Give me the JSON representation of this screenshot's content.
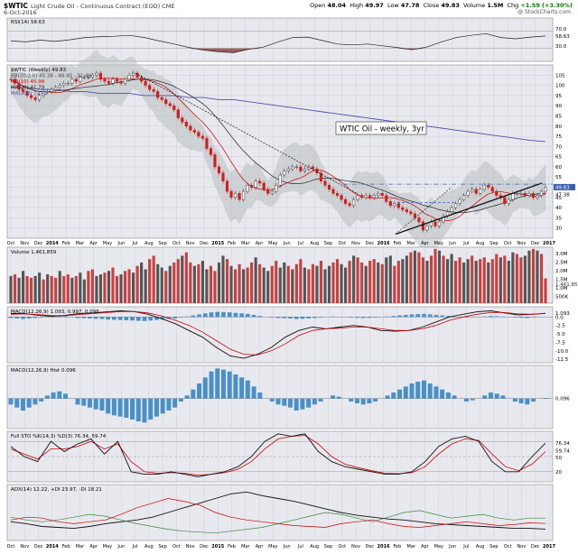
{
  "header": {
    "symbol": "$WTIC",
    "description": "Light Crude Oil - Continuous Contract (EOD) CME",
    "date": "6-Oct-2016",
    "open_label": "Open",
    "open": "48.04",
    "high_label": "High",
    "high": "49.97",
    "low_label": "Low",
    "low": "47.78",
    "close_label": "Close",
    "close": "49.83",
    "volume_label": "Volume",
    "volume": "1.5M",
    "chg_label": "Chg",
    "chg": "+1.59 (+3.30%)",
    "watermark": "@ StockCharts.com"
  },
  "colors": {
    "panel_bg": "#e8e8ef",
    "grid": "#c8c8d2",
    "up": "#404040",
    "down": "#cc2020",
    "ma10": "#cc0000",
    "ma20": "#222222",
    "ma200": "#5050a8",
    "band_fill": "#b9c1c1",
    "hist": "#4a90c8",
    "accent_blue": "#3a5fb0"
  },
  "chart_data": [
    {
      "type": "line",
      "panel": "rsi",
      "legend": "RSI(14) 58.63",
      "ylim": [
        0,
        100
      ],
      "ticks": [
        "70.0",
        "58.63",
        "30.0"
      ],
      "x": [
        "Oct 2013",
        "Nov",
        "Dec",
        "2014",
        "Feb",
        "Mar",
        "Apr",
        "May",
        "Jun",
        "Jul",
        "Aug",
        "Sep",
        "Oct",
        "Nov",
        "Dec",
        "2015",
        "Feb",
        "Mar",
        "Apr",
        "May",
        "Jun",
        "Jul",
        "Aug",
        "Sep",
        "Oct",
        "Nov",
        "Dec",
        "2016",
        "Feb",
        "Mar",
        "Apr",
        "May",
        "Jun",
        "Jul",
        "Aug",
        "Sep",
        "Oct"
      ],
      "values": [
        47,
        45,
        49,
        46,
        50,
        55,
        57,
        58,
        60,
        55,
        47,
        40,
        32,
        26,
        22,
        20,
        28,
        33,
        45,
        55,
        56,
        48,
        40,
        38,
        40,
        36,
        32,
        27,
        33,
        45,
        55,
        60,
        64,
        55,
        52,
        56,
        58.63
      ]
    },
    {
      "type": "candlestick",
      "panel": "price",
      "legend": [
        "$WTIC (Weekly) 49.83",
        "BB(20,2.0) 45.38 - 48.45 - 51.49",
        "MA(10) 45.98",
        "MA(20) 41.79",
        "MA(200) 72.41"
      ],
      "annotation": "WTIC Oil - weekly, 3yr",
      "ylim": [
        25,
        110
      ],
      "y_ticks": [
        "105",
        "100",
        "95",
        "90",
        "85",
        "80",
        "75",
        "70",
        "65",
        "60",
        "55",
        "50",
        "45",
        "40",
        "35",
        "30"
      ],
      "y_tags": [
        "49.83",
        "47.38"
      ],
      "x_ticks": [
        "Oct",
        "Nov",
        "Dec",
        "2014",
        "Feb",
        "Mar",
        "Apr",
        "May",
        "Jun",
        "Jul",
        "Aug",
        "Sep",
        "Oct",
        "Nov",
        "Dec",
        "2015",
        "Feb",
        "Mar",
        "Apr",
        "May",
        "Jun",
        "Jul",
        "Aug",
        "Sep",
        "Oct",
        "Nov",
        "Dec",
        "2016",
        "Feb",
        "Mar",
        "Apr",
        "May",
        "Jun",
        "Jul",
        "Aug",
        "Sep",
        "Oct",
        "Nov",
        "Dec",
        "2017"
      ],
      "weekly_close": [
        103,
        101,
        98,
        97,
        95,
        94,
        93,
        95,
        97,
        97,
        98,
        99,
        100,
        101,
        101,
        103,
        102,
        104,
        104,
        104,
        105,
        106,
        103,
        102,
        101,
        103,
        102,
        101,
        103,
        105,
        106,
        104,
        102,
        100,
        98,
        97,
        94,
        93,
        91,
        90,
        88,
        84,
        82,
        80,
        78,
        77,
        75,
        74,
        69,
        66,
        60,
        57,
        53,
        48,
        45,
        47,
        44,
        48,
        51,
        50,
        53,
        52,
        49,
        47,
        48,
        51,
        56,
        58,
        59,
        60,
        60,
        58,
        59,
        60,
        59,
        57,
        53,
        51,
        49,
        47,
        46,
        44,
        42,
        41,
        44,
        46,
        45,
        46,
        45,
        46,
        47,
        46,
        43,
        41,
        42,
        40,
        39,
        38,
        37,
        35,
        33,
        29,
        31,
        33,
        31,
        33,
        36,
        38,
        40,
        42,
        44,
        46,
        48,
        49,
        47,
        49,
        51,
        50,
        48,
        46,
        45,
        42,
        44,
        47,
        47,
        47,
        46,
        47,
        45,
        46,
        48,
        49.83
      ],
      "ma200": [
        99,
        99,
        98,
        98,
        97,
        97,
        96,
        96,
        96,
        95,
        95,
        95,
        94,
        94,
        93,
        93,
        92,
        91,
        90,
        89,
        88,
        87,
        86,
        85,
        84,
        83,
        82,
        81,
        80,
        79,
        78,
        77,
        76,
        75,
        74,
        73,
        72.41
      ]
    },
    {
      "type": "bar",
      "panel": "volume",
      "legend": "Volume 1,461,859",
      "y_ticks": [
        "3.0M",
        "2.5M",
        "2.0M",
        "1.5M",
        "1.0M",
        "500K"
      ],
      "y_tag": "1,461,859",
      "values": [
        1.6,
        1.7,
        1.5,
        1.9,
        1.6,
        1.5,
        1.6,
        1.8,
        1.4,
        1.7,
        1.6,
        1.5,
        1.9,
        1.6,
        1.7,
        1.5,
        1.6,
        1.8,
        1.4,
        1.9,
        2.0,
        1.6,
        1.7,
        1.8,
        1.9,
        2.1,
        1.6,
        1.7,
        1.9,
        2.0,
        1.8,
        2.2,
        2.4,
        2.0,
        2.6,
        2.8,
        2.3,
        2.1,
        1.9,
        2.2,
        2.4,
        2.6,
        2.8,
        3.0,
        2.4,
        2.2,
        2.3,
        2.5,
        2.0,
        2.2,
        1.9,
        2.4,
        2.8,
        2.6,
        2.2,
        2.0,
        2.3,
        2.0,
        2.1,
        2.4,
        2.7,
        2.3,
        2.1,
        1.9,
        2.2,
        2.5,
        2.1,
        2.4,
        2.2,
        2.0,
        2.3,
        2.6,
        2.1,
        2.0,
        2.3,
        2.2,
        2.5,
        2.0,
        2.2,
        2.4,
        2.6,
        2.3,
        2.1,
        2.5,
        2.8,
        2.7,
        2.4,
        2.2,
        2.5,
        2.6,
        2.4,
        2.3,
        2.7,
        2.8,
        2.2,
        2.5,
        2.6,
        2.8,
        3.0,
        3.1,
        3.0,
        2.7,
        2.5,
        2.8,
        3.2,
        3.1,
        2.8,
        2.6,
        2.9,
        2.5,
        2.7,
        2.4,
        2.6,
        2.8,
        2.5,
        2.6,
        2.7,
        2.4,
        2.6,
        2.9,
        2.7,
        2.8,
        2.5,
        3.0,
        2.9,
        2.7,
        2.8,
        3.1,
        3.2,
        3.1,
        2.9,
        1.46
      ]
    },
    {
      "type": "line",
      "panel": "macd",
      "legend": "MACD(12,26,9) 1.093, 0.997, 0.096",
      "ylim": [
        -13.5,
        3
      ],
      "y_ticks": [
        "1.093",
        "0.0",
        "-2.5",
        "-5.0",
        "-7.5",
        "-10.0",
        "-12.5"
      ],
      "series": [
        {
          "name": "MACD",
          "values": [
            1,
            1,
            0.5,
            0.2,
            0.5,
            1,
            1.2,
            1.5,
            1.8,
            1.6,
            0.8,
            -0.5,
            -2,
            -4,
            -6,
            -9,
            -11.5,
            -12.2,
            -11,
            -9,
            -6,
            -4,
            -3,
            -3.5,
            -3,
            -2.5,
            -3,
            -4,
            -4.2,
            -4,
            -3,
            -1.5,
            0,
            0.8,
            1.5,
            1.8,
            1.2,
            0.6,
            0.8,
            1.093
          ]
        },
        {
          "name": "Signal",
          "values": [
            0.8,
            0.9,
            0.7,
            0.4,
            0.4,
            0.7,
            1,
            1.3,
            1.6,
            1.6,
            1.2,
            0.3,
            -1,
            -2.5,
            -4.5,
            -7,
            -9.5,
            -11,
            -11.2,
            -10,
            -8,
            -5.5,
            -4,
            -3.5,
            -3.3,
            -3,
            -3,
            -3.5,
            -4,
            -4,
            -3.5,
            -2.5,
            -1,
            0,
            0.8,
            1.3,
            1.3,
            0.9,
            0.8,
            0.997
          ]
        }
      ]
    },
    {
      "type": "bar",
      "panel": "macd_hist",
      "legend": "MACD(12,26,9) Hist 0.096",
      "y_tag": "0.096",
      "values": [
        -1,
        -1.5,
        -2,
        -1.5,
        -1,
        -0.5,
        0.5,
        1,
        1.2,
        0.8,
        0,
        -1,
        -1.2,
        -1.5,
        -1.8,
        -2,
        -2.5,
        -2.8,
        -3,
        -3.2,
        -3.5,
        -3.8,
        -4,
        -3.5,
        -3,
        -2.5,
        -2,
        -1.5,
        -0.5,
        0.5,
        1.5,
        2.5,
        3.5,
        4.5,
        5,
        4.8,
        4.5,
        4,
        3.5,
        3,
        2,
        1,
        0,
        -0.5,
        -1,
        -1.2,
        -1.5,
        -2,
        -1.8,
        -1.5,
        -1,
        -0.5,
        0,
        0.5,
        0.3,
        0,
        -0.5,
        -0.8,
        -1,
        -0.8,
        -0.5,
        0,
        0.5,
        1,
        1.5,
        2,
        2.5,
        2.8,
        3,
        2.5,
        2,
        1.5,
        1,
        0.5,
        0,
        -0.5,
        -0.3,
        0,
        0.5,
        1,
        0.8,
        0.5,
        0,
        -0.5,
        -0.8,
        -1,
        -0.5,
        0,
        0.096
      ]
    },
    {
      "type": "line",
      "panel": "stochastic",
      "legend": "Full STO %K(14,3) %D(3) 76.34, 59.74",
      "ylim": [
        0,
        100
      ],
      "y_ticks": [
        "76.34",
        "59.74",
        "50",
        "20"
      ],
      "series": [
        {
          "name": "%K",
          "values": [
            70,
            50,
            40,
            80,
            60,
            75,
            85,
            55,
            80,
            20,
            15,
            15,
            20,
            15,
            10,
            15,
            20,
            30,
            50,
            80,
            95,
            90,
            95,
            60,
            40,
            30,
            25,
            20,
            15,
            15,
            20,
            40,
            70,
            85,
            90,
            80,
            40,
            20,
            20,
            50,
            76.34
          ]
        },
        {
          "name": "%D",
          "values": [
            65,
            55,
            45,
            65,
            65,
            70,
            80,
            65,
            75,
            40,
            20,
            17,
            18,
            17,
            13,
            15,
            18,
            25,
            40,
            65,
            85,
            90,
            92,
            75,
            50,
            35,
            28,
            22,
            17,
            16,
            18,
            30,
            55,
            75,
            85,
            82,
            55,
            30,
            22,
            35,
            59.74
          ]
        }
      ]
    },
    {
      "type": "line",
      "panel": "adx",
      "legend": "ADX(14) 12.22, +DI 23.97, -DI 18.21",
      "ylim": [
        0,
        60
      ],
      "series": [
        {
          "name": "ADX",
          "values": [
            20,
            18,
            15,
            14,
            13,
            15,
            18,
            20,
            22,
            25,
            30,
            35,
            40,
            45,
            50,
            52,
            48,
            45,
            42,
            38,
            34,
            30,
            27,
            25,
            23,
            22,
            20,
            18,
            17,
            16,
            15,
            14,
            13,
            13,
            12.22
          ]
        },
        {
          "name": "+DI",
          "values": [
            25,
            22,
            20,
            22,
            25,
            28,
            26,
            22,
            18,
            15,
            12,
            10,
            9,
            8,
            10,
            12,
            14,
            18,
            22,
            26,
            30,
            28,
            24,
            20,
            25,
            30,
            32,
            28,
            24,
            26,
            28,
            24,
            22,
            24,
            23.97
          ]
        },
        {
          "name": "-DI",
          "values": [
            22,
            25,
            24,
            20,
            18,
            20,
            22,
            28,
            35,
            40,
            45,
            42,
            38,
            30,
            25,
            22,
            20,
            18,
            16,
            15,
            14,
            18,
            20,
            22,
            18,
            15,
            14,
            16,
            18,
            20,
            18,
            16,
            17,
            19,
            18.21
          ]
        }
      ]
    }
  ]
}
